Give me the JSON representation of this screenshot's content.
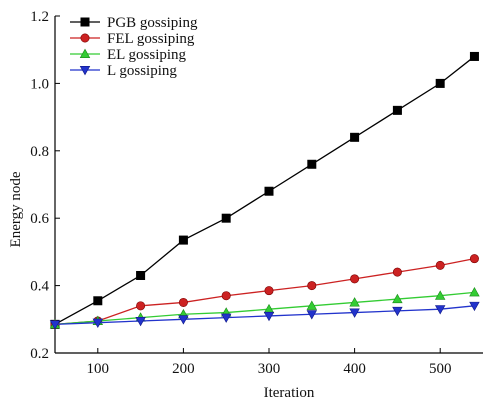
{
  "chart_data": {
    "type": "line",
    "title": "",
    "xlabel": "Iteration",
    "ylabel": "Energy node",
    "xlim": [
      50,
      550
    ],
    "ylim": [
      0.2,
      1.2
    ],
    "x_ticks": [
      100,
      200,
      300,
      400,
      500
    ],
    "y_ticks": [
      0.2,
      0.4,
      0.6,
      0.8,
      1.0,
      1.2
    ],
    "x_tick_labels": [
      "100",
      "200",
      "300",
      "400",
      "500"
    ],
    "y_tick_labels": [
      "0.2",
      "0.4",
      "0.6",
      "0.8",
      "1.0",
      "1.2"
    ],
    "legend_position": "top-left",
    "grid": false,
    "x": [
      50,
      100,
      150,
      200,
      250,
      300,
      350,
      400,
      450,
      500,
      540
    ],
    "series": [
      {
        "name": "PGB gossiping",
        "color": "#000000",
        "marker": "square",
        "values": [
          0.285,
          0.355,
          0.43,
          0.535,
          0.6,
          0.68,
          0.76,
          0.84,
          0.92,
          1.0,
          1.08
        ]
      },
      {
        "name": "FEL gossiping",
        "color": "#cc2222",
        "marker": "circle",
        "values": [
          0.285,
          0.295,
          0.34,
          0.35,
          0.37,
          0.385,
          0.4,
          0.42,
          0.44,
          0.46,
          0.48
        ]
      },
      {
        "name": "EL gossiping",
        "color": "#33cc33",
        "marker": "triangle-up",
        "values": [
          0.285,
          0.295,
          0.305,
          0.315,
          0.32,
          0.33,
          0.34,
          0.35,
          0.36,
          0.37,
          0.38
        ]
      },
      {
        "name": "L gossiping",
        "color": "#2233cc",
        "marker": "triangle-down",
        "values": [
          0.285,
          0.29,
          0.295,
          0.3,
          0.305,
          0.31,
          0.315,
          0.32,
          0.325,
          0.33,
          0.34
        ]
      }
    ]
  }
}
